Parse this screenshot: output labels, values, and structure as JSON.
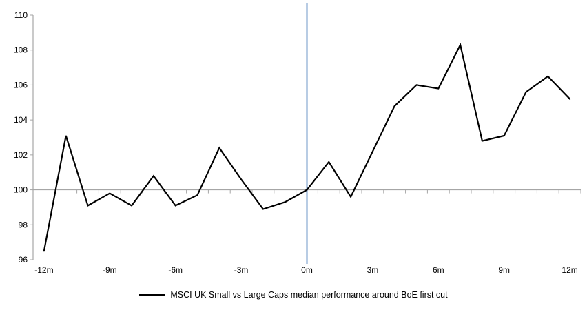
{
  "chart_data": {
    "type": "line",
    "title": "",
    "xlabel": "",
    "ylabel": "",
    "x_months": [
      -12,
      -11,
      -10,
      -9,
      -8,
      -7,
      -6,
      -5,
      -4,
      -3,
      -2,
      -1,
      0,
      1,
      2,
      3,
      4,
      5,
      6,
      7,
      8,
      9,
      10,
      11,
      12
    ],
    "series": [
      {
        "name": "MSCI UK Small vs Large Caps median performance around BoE first cut",
        "values": [
          96.5,
          103.1,
          99.1,
          99.8,
          99.1,
          100.8,
          99.1,
          99.7,
          102.4,
          100.6,
          98.9,
          99.3,
          100.0,
          101.6,
          99.6,
          102.2,
          104.8,
          106.0,
          105.8,
          108.3,
          102.8,
          103.1,
          105.6,
          106.5,
          105.2
        ]
      }
    ],
    "ylim": [
      96,
      110
    ],
    "yticks": [
      96,
      98,
      100,
      102,
      104,
      106,
      108,
      110
    ],
    "xtick_label_step_months": 3,
    "xtick_label_suffix": "m",
    "baseline_value": 100,
    "event_line_month": 0,
    "grid": "baseline-only",
    "legend_position": "bottom",
    "legend": {
      "label": "MSCI UK Small vs Large Caps median performance around BoE first cut"
    },
    "colors": {
      "series_line": "#000000",
      "event_line": "#4F81BD",
      "axis_line": "#A6A6A6",
      "tick_mark": "#A6A6A6",
      "tick_text": "#000000"
    }
  }
}
